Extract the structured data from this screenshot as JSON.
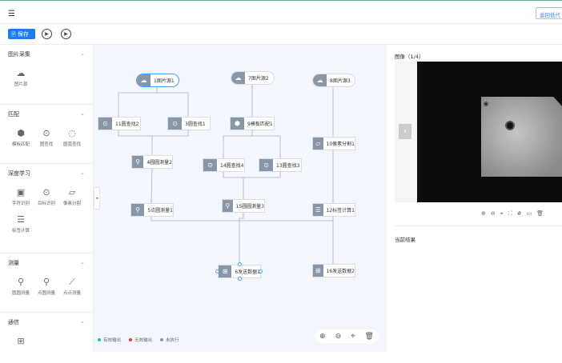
{
  "header": {
    "back_button": "返回低代"
  },
  "toolbar": {
    "save": "保存",
    "run_icon": "play-icon",
    "loop_icon": "replay-icon"
  },
  "sidebar": [
    {
      "title": "图片采集",
      "items": [
        {
          "label": "图片源",
          "icon": "☁"
        }
      ]
    },
    {
      "title": "匹配",
      "items": [
        {
          "label": "模板匹配",
          "icon": "⬢"
        },
        {
          "label": "圆查找",
          "icon": "⊙"
        },
        {
          "label": "圆弧查找",
          "icon": "◌"
        }
      ]
    },
    {
      "title": "深度学习",
      "items": [
        {
          "label": "字符识别",
          "icon": "▣"
        },
        {
          "label": "目标识别",
          "icon": "⊙"
        },
        {
          "label": "像素分割",
          "icon": "▱"
        },
        {
          "label": "标签计算",
          "icon": "☰"
        }
      ]
    },
    {
      "title": "测量",
      "items": [
        {
          "label": "圆圆测量",
          "icon": "⚲"
        },
        {
          "label": "点圆测量",
          "icon": "⚲"
        },
        {
          "label": "点点测量",
          "icon": "⟋"
        }
      ]
    },
    {
      "title": "通信",
      "items": [
        {
          "label": "",
          "icon": "⊞"
        }
      ]
    }
  ],
  "nodes": {
    "n1": "1图片源1",
    "n7": "7图片源2",
    "n8": "8图片源3",
    "n11": "11圆查找2",
    "n3": "3圆查找1",
    "n9": "9模板匹配1",
    "n4": "4圆圆测量2",
    "n14": "14圆查找4",
    "n13": "13圆查找3",
    "n10": "10像素分割1",
    "n5": "5点圆测量1",
    "n15": "15圆圆测量3",
    "n12": "12标签计算1",
    "n6": "6发送数据1",
    "n16": "16发送数据2"
  },
  "legend": [
    {
      "label": "有效输出",
      "color": "#1fc8a0"
    },
    {
      "label": "无效输出",
      "color": "#f03a3a"
    },
    {
      "label": "未执行",
      "color": "#8a94a6"
    }
  ],
  "right": {
    "image_title": "图像（1/4）",
    "result_title": "当前结果"
  }
}
